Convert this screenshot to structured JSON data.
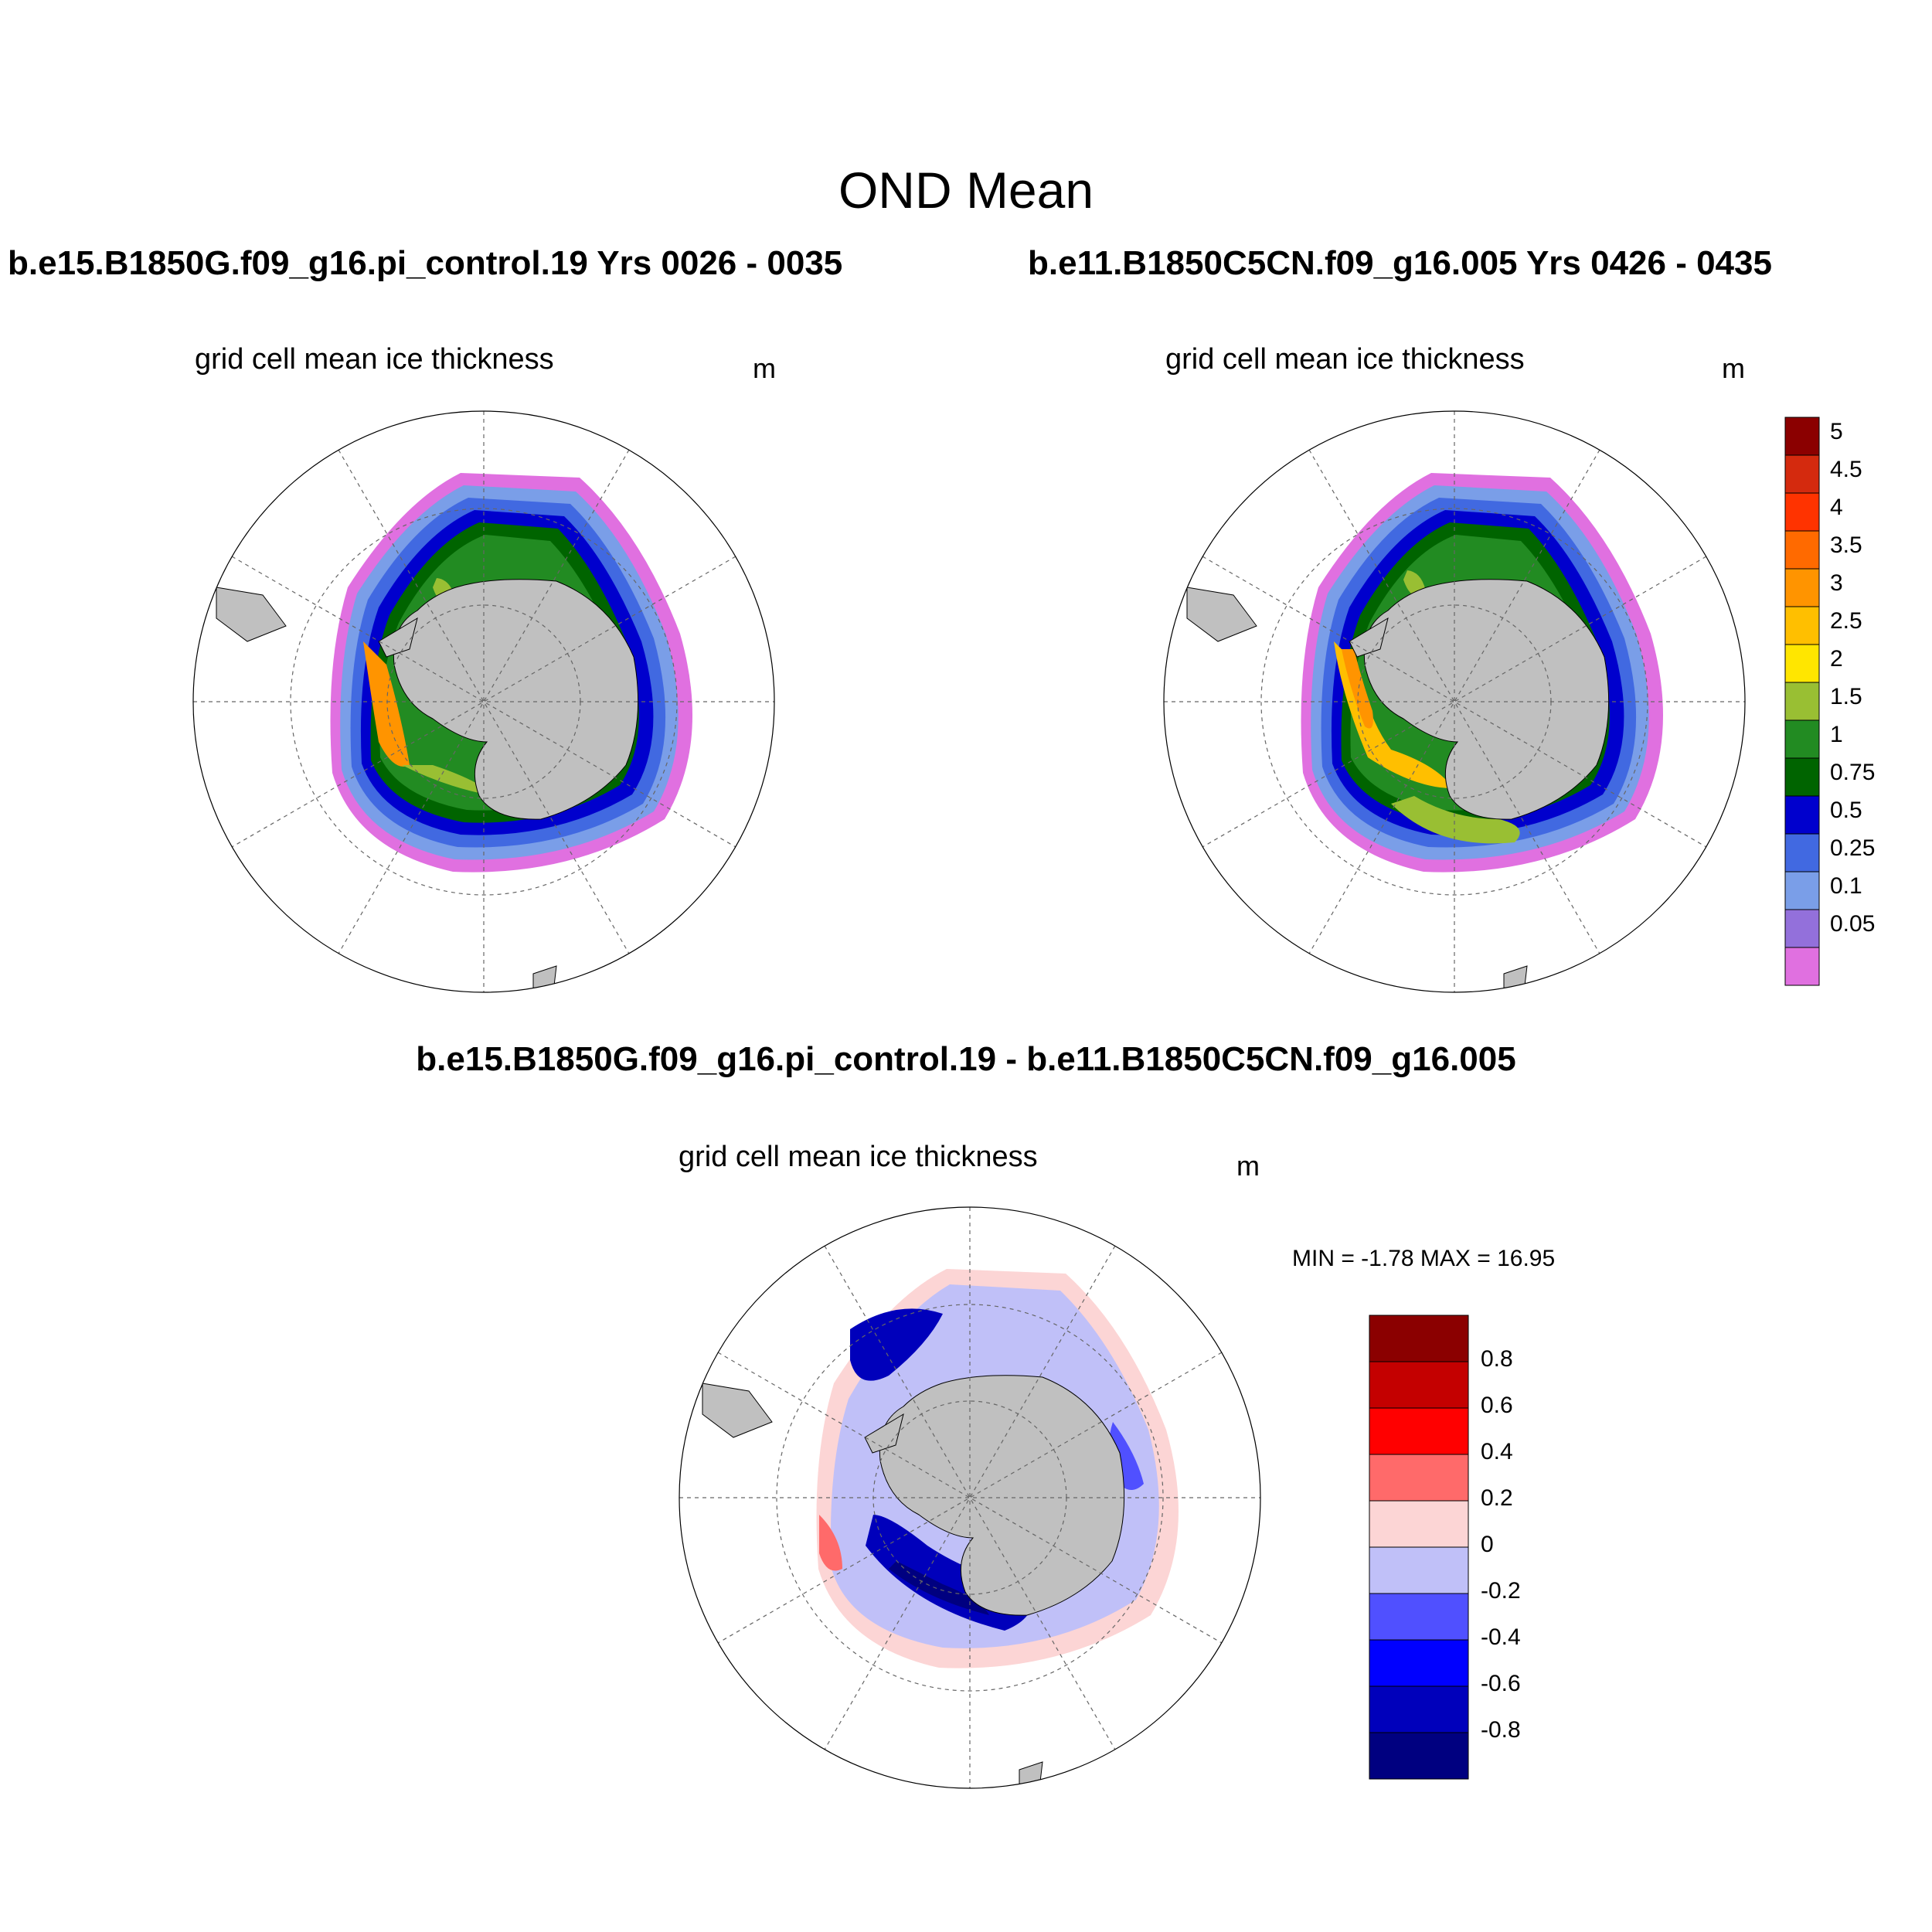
{
  "title": "OND Mean",
  "panels": {
    "left": {
      "case": "b.e15.B1850G.f09_g16.pi_control.19  Yrs 0026 - 0035",
      "variable": "grid cell mean ice thickness",
      "units": "m"
    },
    "right": {
      "case": "b.e11.B1850C5CN.f09_g16.005  Yrs 0426 - 0435",
      "variable": "grid cell mean ice thickness",
      "units": "m"
    },
    "diff": {
      "case": "b.e15.B1850G.f09_g16.pi_control.19 - b.e11.B1850C5CN.f09_g16.005",
      "variable": "grid cell mean ice thickness",
      "units": "m",
      "minmax": "MIN =  -1.78 MAX =  16.95"
    }
  },
  "thickness_colorbar": {
    "labels": [
      "5",
      "4.5",
      "4",
      "3.5",
      "3",
      "2.5",
      "2",
      "1.5",
      "1",
      "0.75",
      "0.5",
      "0.25",
      "0.1",
      "0.05"
    ],
    "colors": [
      "#8b0000",
      "#d42a0e",
      "#ff3300",
      "#ff6a00",
      "#ff9400",
      "#ffbf00",
      "#ffe600",
      "#99bf33",
      "#228b22",
      "#006400",
      "#0000cd",
      "#4169e1",
      "#7a9ee8",
      "#9370db",
      "#e070e0"
    ]
  },
  "difference_colorbar": {
    "labels": [
      "0.8",
      "0.6",
      "0.4",
      "0.2",
      "0",
      "-0.2",
      "-0.4",
      "-0.6",
      "-0.8"
    ],
    "colors": [
      "#8b0000",
      "#c40000",
      "#ff0000",
      "#ff6a6a",
      "#fcd5d5",
      "#c0c0f8",
      "#5050ff",
      "#0000ff",
      "#0000bb",
      "#000080"
    ]
  }
}
